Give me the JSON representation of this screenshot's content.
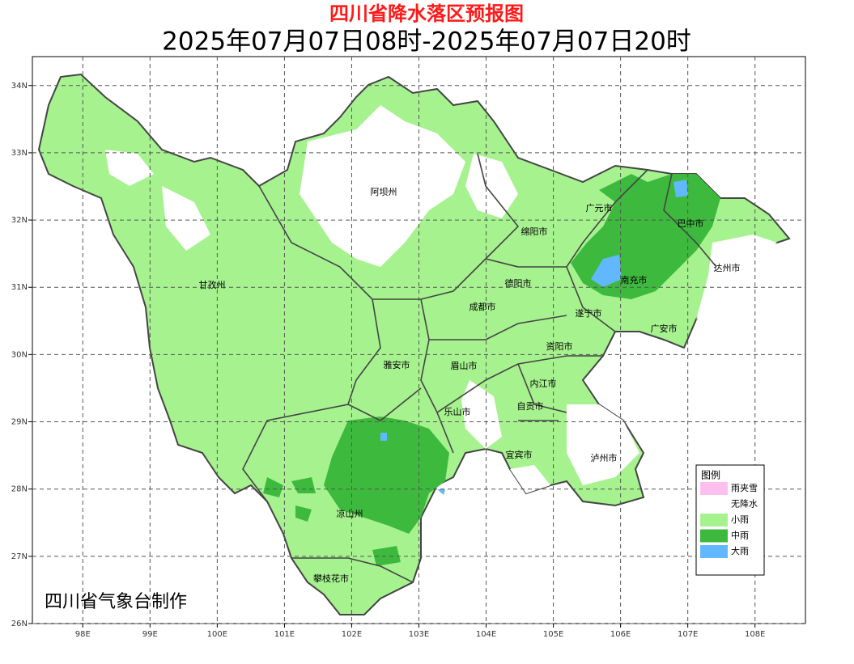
{
  "header": {
    "title": "四川省降水落区预报图",
    "subtitle": "2025年07月07日08时-2025年07月07日20时"
  },
  "map": {
    "xlim": [
      97.25,
      108.75
    ],
    "ylim": [
      26,
      34.43
    ],
    "xticks": [
      {
        "value": 98,
        "label": "98E"
      },
      {
        "value": 99,
        "label": "99E"
      },
      {
        "value": 100,
        "label": "100E"
      },
      {
        "value": 101,
        "label": "101E"
      },
      {
        "value": 102,
        "label": "102E"
      },
      {
        "value": 103,
        "label": "103E"
      },
      {
        "value": 104,
        "label": "104E"
      },
      {
        "value": 105,
        "label": "105E"
      },
      {
        "value": 106,
        "label": "106E"
      },
      {
        "value": 107,
        "label": "107E"
      },
      {
        "value": 108,
        "label": "108E"
      }
    ],
    "yticks": [
      {
        "value": 26,
        "label": "26N"
      },
      {
        "value": 27,
        "label": "27N"
      },
      {
        "value": 28,
        "label": "28N"
      },
      {
        "value": 29,
        "label": "29N"
      },
      {
        "value": 30,
        "label": "30N"
      },
      {
        "value": 31,
        "label": "31N"
      },
      {
        "value": 32,
        "label": "32N"
      },
      {
        "value": 33,
        "label": "33N"
      },
      {
        "value": 34,
        "label": "34N"
      }
    ],
    "grid": true,
    "regions": [
      "阿坝州",
      "甘孜州",
      "广元市",
      "巴中市",
      "绵阳市",
      "达州市",
      "南充市",
      "德阳市",
      "成都市",
      "遂宁市",
      "广安市",
      "资阳市",
      "雅安市",
      "眉山市",
      "内江市",
      "自贡市",
      "乐山市",
      "宜宾市",
      "泸州市",
      "凉山州",
      "攀枝花市"
    ],
    "legend": {
      "title": "图例",
      "items": [
        {
          "label": "雨夹雪",
          "color": "#ffbfee"
        },
        {
          "label": "无降水",
          "color": "#ffffff"
        },
        {
          "label": "小雨",
          "color": "#a6f28f"
        },
        {
          "label": "中雨",
          "color": "#3dba3d"
        },
        {
          "label": "大雨",
          "color": "#61b8ff"
        }
      ]
    },
    "credit": "四川省气象台制作"
  }
}
